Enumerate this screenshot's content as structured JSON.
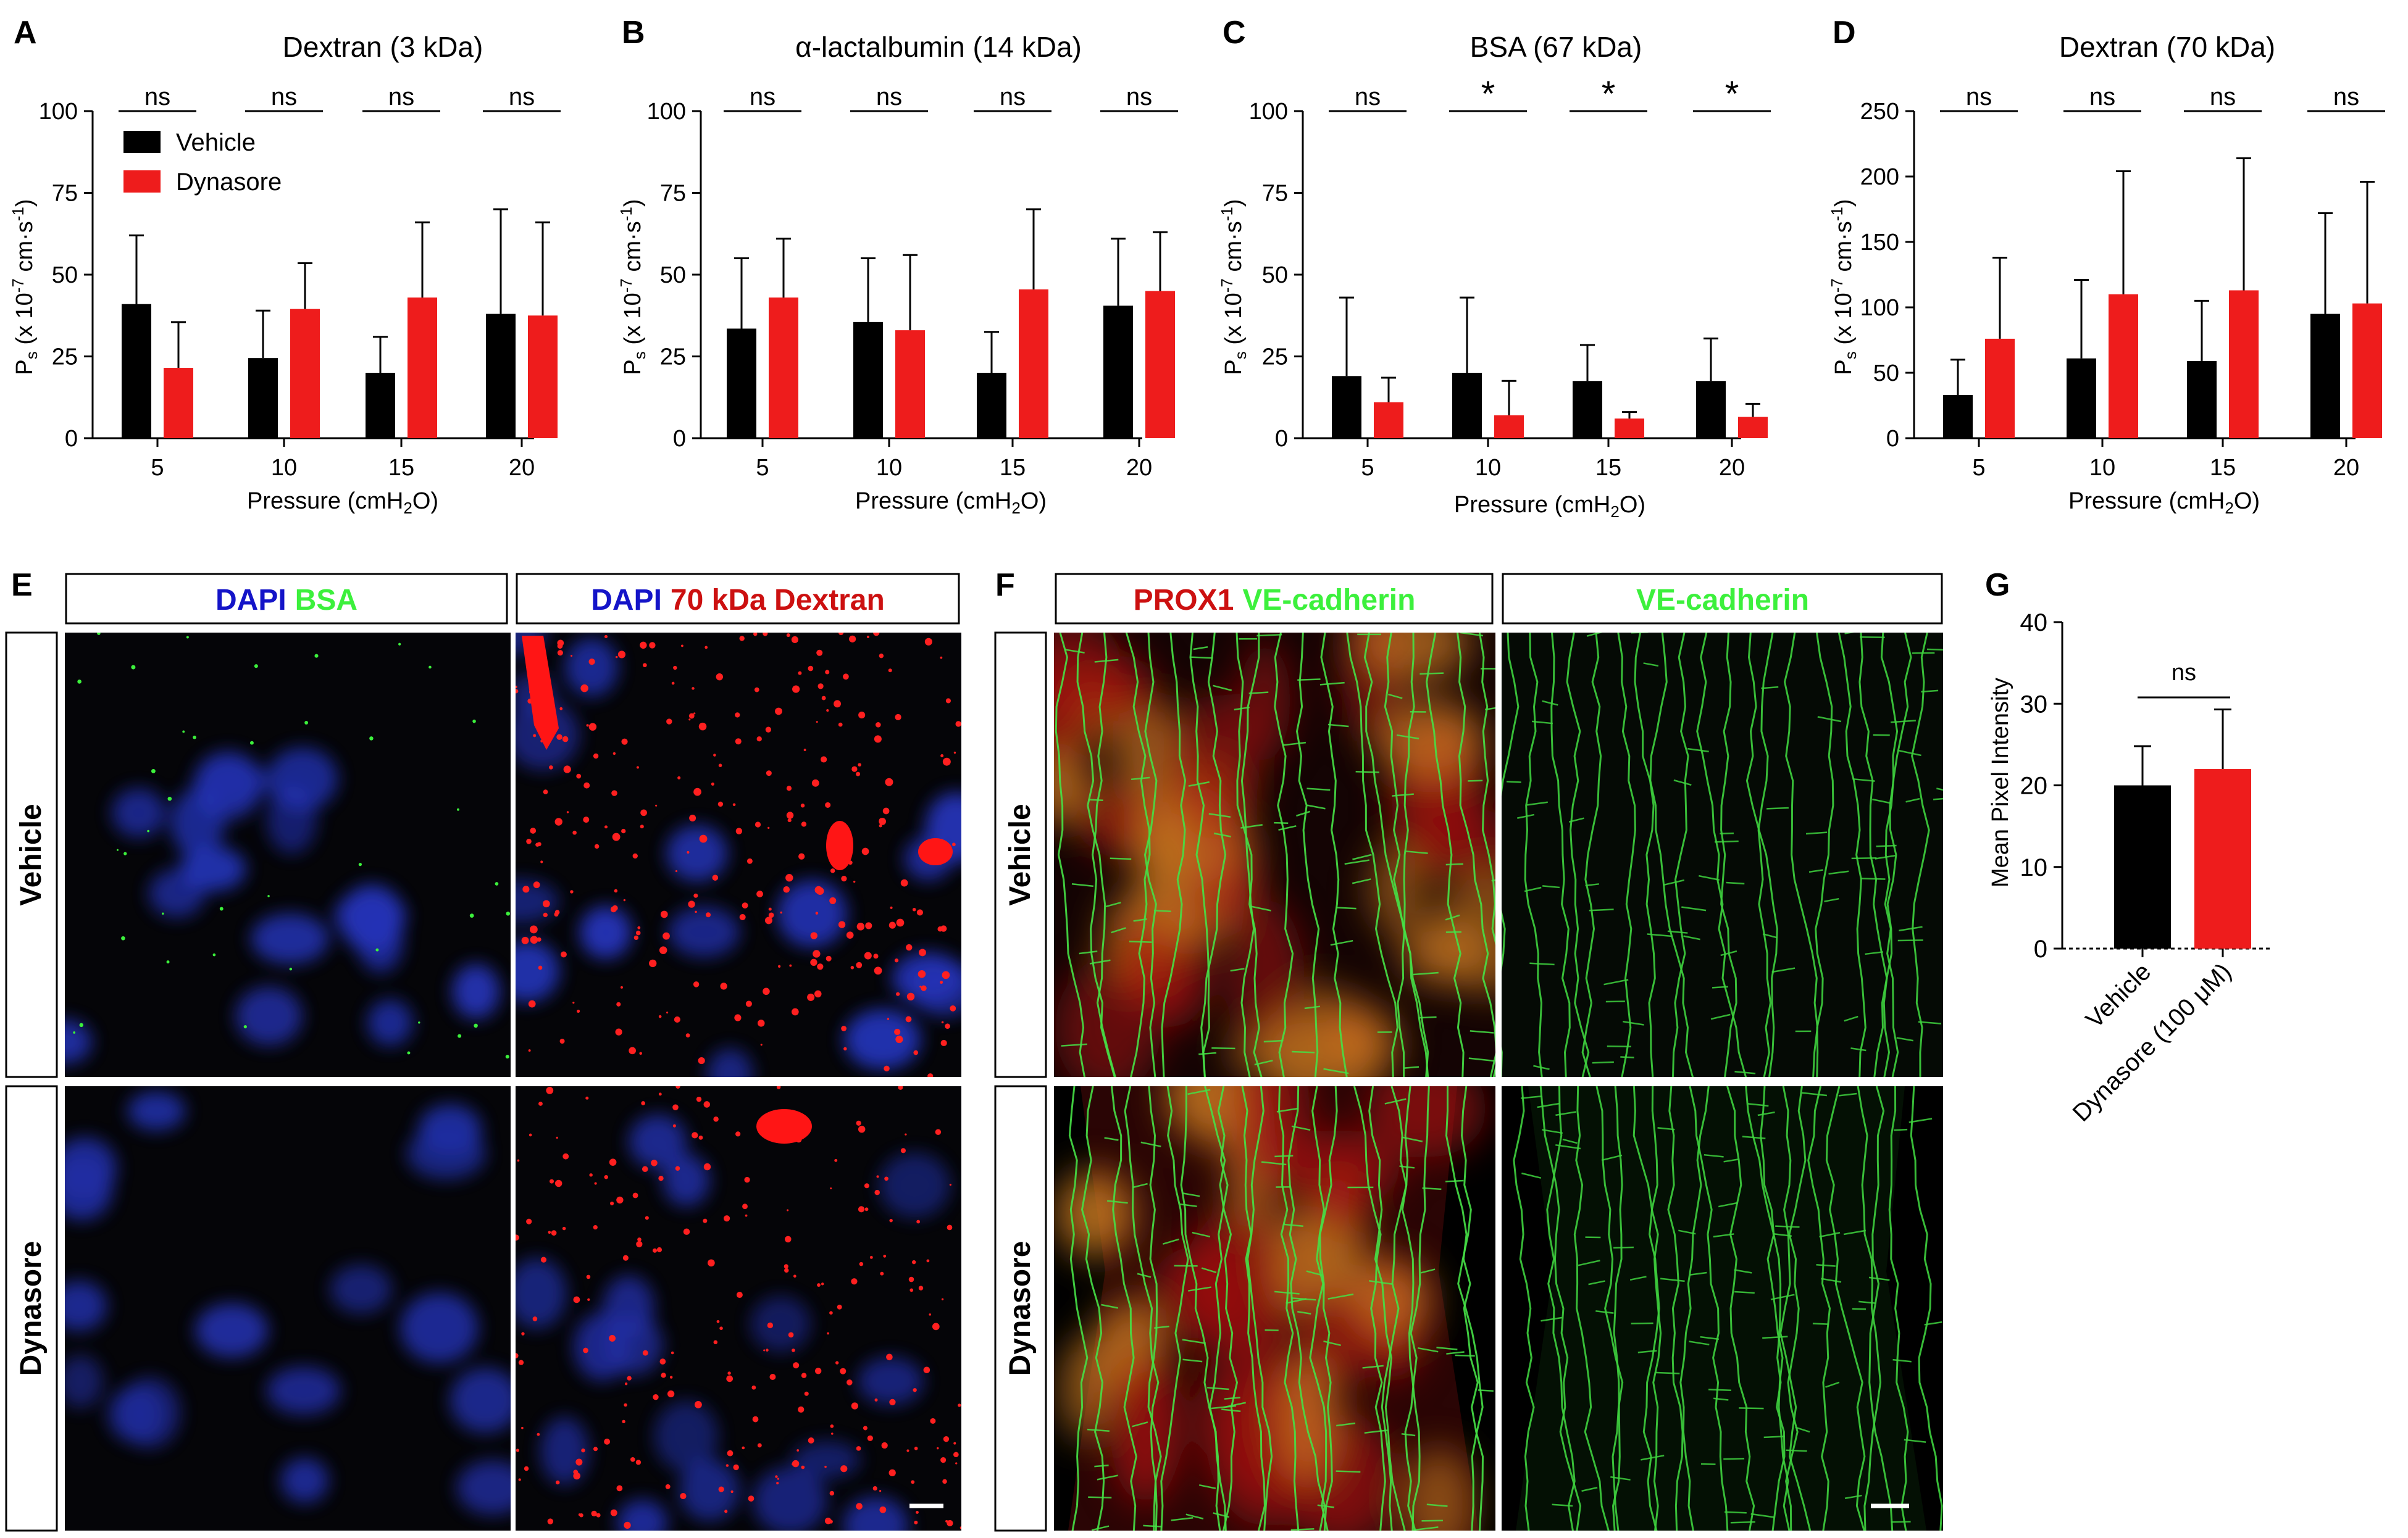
{
  "colors": {
    "vehicle": "#000000",
    "dynasore": "#ee1c1c",
    "dapi": "#1414c8",
    "green": "#3cf03c",
    "red": "#cc1010"
  },
  "charts": {
    "A": {
      "letter": "A",
      "title": "Dextran (3 kDa)"
    },
    "B": {
      "letter": "B",
      "title": "α-lactalbumin (14 kDa)"
    },
    "C": {
      "letter": "C",
      "title": "BSA (67 kDa)"
    },
    "D": {
      "letter": "D",
      "title": "Dextran (70 kDa)"
    },
    "G": {
      "letter": "G"
    }
  },
  "axis": {
    "ylabel_main": "P",
    "ylabel_sub": "s",
    "ylabel_rest": " (x 10",
    "ylabel_exp": "-7",
    "ylabel_unit": " cm·s",
    "ylabel_exp2": "-1",
    "ylabel_close": ")",
    "xlabel_pre": "Pressure (cmH",
    "xlabel_sub": "2",
    "xlabel_post": "O)",
    "g_ylabel": "Mean Pixel Intensity"
  },
  "legend": {
    "vehicle": "Vehicle",
    "dynasore": "Dynasore"
  },
  "chart_data": [
    {
      "id": "A",
      "type": "bar",
      "title": "Dextran (3 kDa)",
      "categories": [
        "5",
        "10",
        "15",
        "20"
      ],
      "series": [
        {
          "name": "Vehicle",
          "values": [
            41,
            24.5,
            20,
            38
          ],
          "errors": [
            21,
            14.5,
            11,
            32
          ]
        },
        {
          "name": "Dynasore",
          "values": [
            21.5,
            39.5,
            43,
            37.5
          ],
          "errors": [
            14,
            14,
            23,
            28.5
          ]
        }
      ],
      "ylim": [
        0,
        100
      ],
      "yticks": [
        0,
        25,
        50,
        75,
        100
      ],
      "significance": [
        "ns",
        "ns",
        "ns",
        "ns"
      ]
    },
    {
      "id": "B",
      "type": "bar",
      "title": "α-lactalbumin (14 kDa)",
      "categories": [
        "5",
        "10",
        "15",
        "20"
      ],
      "series": [
        {
          "name": "Vehicle",
          "values": [
            33.5,
            35.5,
            20,
            40.5
          ],
          "errors": [
            21.5,
            19.5,
            12.5,
            20.5
          ]
        },
        {
          "name": "Dynasore",
          "values": [
            43,
            33,
            45.5,
            45
          ],
          "errors": [
            18,
            23,
            24.5,
            18
          ]
        }
      ],
      "ylim": [
        0,
        100
      ],
      "yticks": [
        0,
        25,
        50,
        75,
        100
      ],
      "significance": [
        "ns",
        "ns",
        "ns",
        "ns"
      ]
    },
    {
      "id": "C",
      "type": "bar",
      "title": "BSA (67 kDa)",
      "categories": [
        "5",
        "10",
        "15",
        "20"
      ],
      "series": [
        {
          "name": "Vehicle",
          "values": [
            19,
            20,
            17.5,
            17.5
          ],
          "errors": [
            24,
            23,
            11,
            13
          ]
        },
        {
          "name": "Dynasore",
          "values": [
            11,
            7,
            6,
            6.5
          ],
          "errors": [
            7.5,
            10.5,
            2,
            4
          ]
        }
      ],
      "ylim": [
        0,
        100
      ],
      "yticks": [
        0,
        25,
        50,
        75,
        100
      ],
      "significance": [
        "ns",
        "*",
        "*",
        "*"
      ]
    },
    {
      "id": "D",
      "type": "bar",
      "title": "Dextran (70 kDa)",
      "categories": [
        "5",
        "10",
        "15",
        "20"
      ],
      "series": [
        {
          "name": "Vehicle",
          "values": [
            33,
            61,
            59,
            95
          ],
          "errors": [
            27,
            60,
            46,
            77
          ]
        },
        {
          "name": "Dynasore",
          "values": [
            76,
            110,
            113,
            103
          ],
          "errors": [
            62,
            94,
            101,
            93
          ]
        }
      ],
      "ylim": [
        0,
        250
      ],
      "yticks": [
        0,
        50,
        100,
        150,
        200,
        250
      ],
      "significance": [
        "ns",
        "ns",
        "ns",
        "ns"
      ]
    },
    {
      "id": "G",
      "type": "bar",
      "categories": [
        "Vehicle",
        "Dynasore (100 μM)"
      ],
      "values": [
        20,
        22
      ],
      "errors": [
        4.8,
        7.3
      ],
      "ylabel": "Mean Pixel Intensity",
      "ylim": [
        0,
        40
      ],
      "yticks": [
        0,
        10,
        20,
        30,
        40
      ],
      "significance": [
        "ns"
      ]
    }
  ],
  "panels": {
    "E": {
      "letter": "E",
      "header1_a": "DAPI",
      "header1_b": "BSA",
      "header2_a": "DAPI",
      "header2_b": "70 kDa Dextran"
    },
    "F": {
      "letter": "F",
      "header1_a": "PROX1",
      "header1_b": "VE-cadherin",
      "header2_a": "VE-cadherin"
    },
    "row_vehicle": "Vehicle",
    "row_dynasore": "Dynasore"
  }
}
